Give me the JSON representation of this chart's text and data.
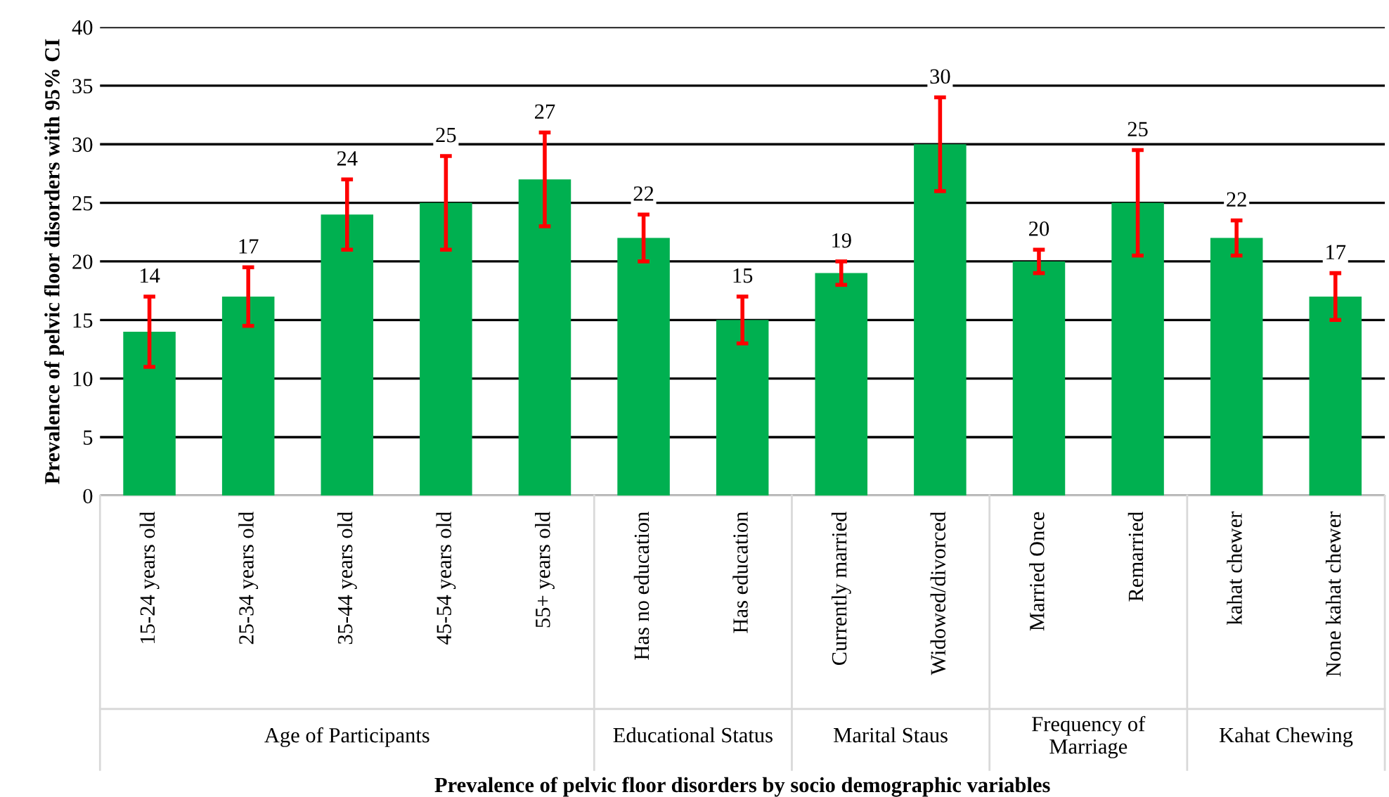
{
  "chart_data": {
    "type": "bar",
    "ylabel": "Prevalence of pelvic floor disorders with 95% CI",
    "xlabel": "Prevalence of pelvic floor disorders by socio demographic variables",
    "categories": [
      "15-24 years old",
      "25-34 years old",
      "35-44 years old",
      "45-54 years old",
      "55+ years old",
      "Has no education",
      "Has education",
      "Currently married",
      "Widowed/divorced",
      "Married Once",
      "Remarried",
      "kahat chewer",
      "None kahat chewer"
    ],
    "values": [
      14,
      17,
      24,
      25,
      27,
      22,
      15,
      19,
      30,
      20,
      25,
      22,
      17
    ],
    "errors": [
      [
        11,
        17
      ],
      [
        14.5,
        19.5
      ],
      [
        21,
        27
      ],
      [
        21,
        29
      ],
      [
        23,
        31
      ],
      [
        20,
        24
      ],
      [
        13,
        17
      ],
      [
        18,
        20
      ],
      [
        26,
        34
      ],
      [
        19,
        21
      ],
      [
        20.5,
        29.5
      ],
      [
        20.5,
        23.5
      ],
      [
        15,
        19
      ]
    ],
    "color": "#00b050",
    "data_labels": true,
    "ylim": [
      0,
      40
    ],
    "yticks": [
      0,
      5,
      10,
      15,
      20,
      25,
      30,
      35,
      40
    ],
    "grid": "y",
    "annotations": [
      "Age of Participants",
      "Educational Status",
      "Marital Staus",
      "Frequency of Marriage",
      "Kahat Chewing"
    ]
  }
}
